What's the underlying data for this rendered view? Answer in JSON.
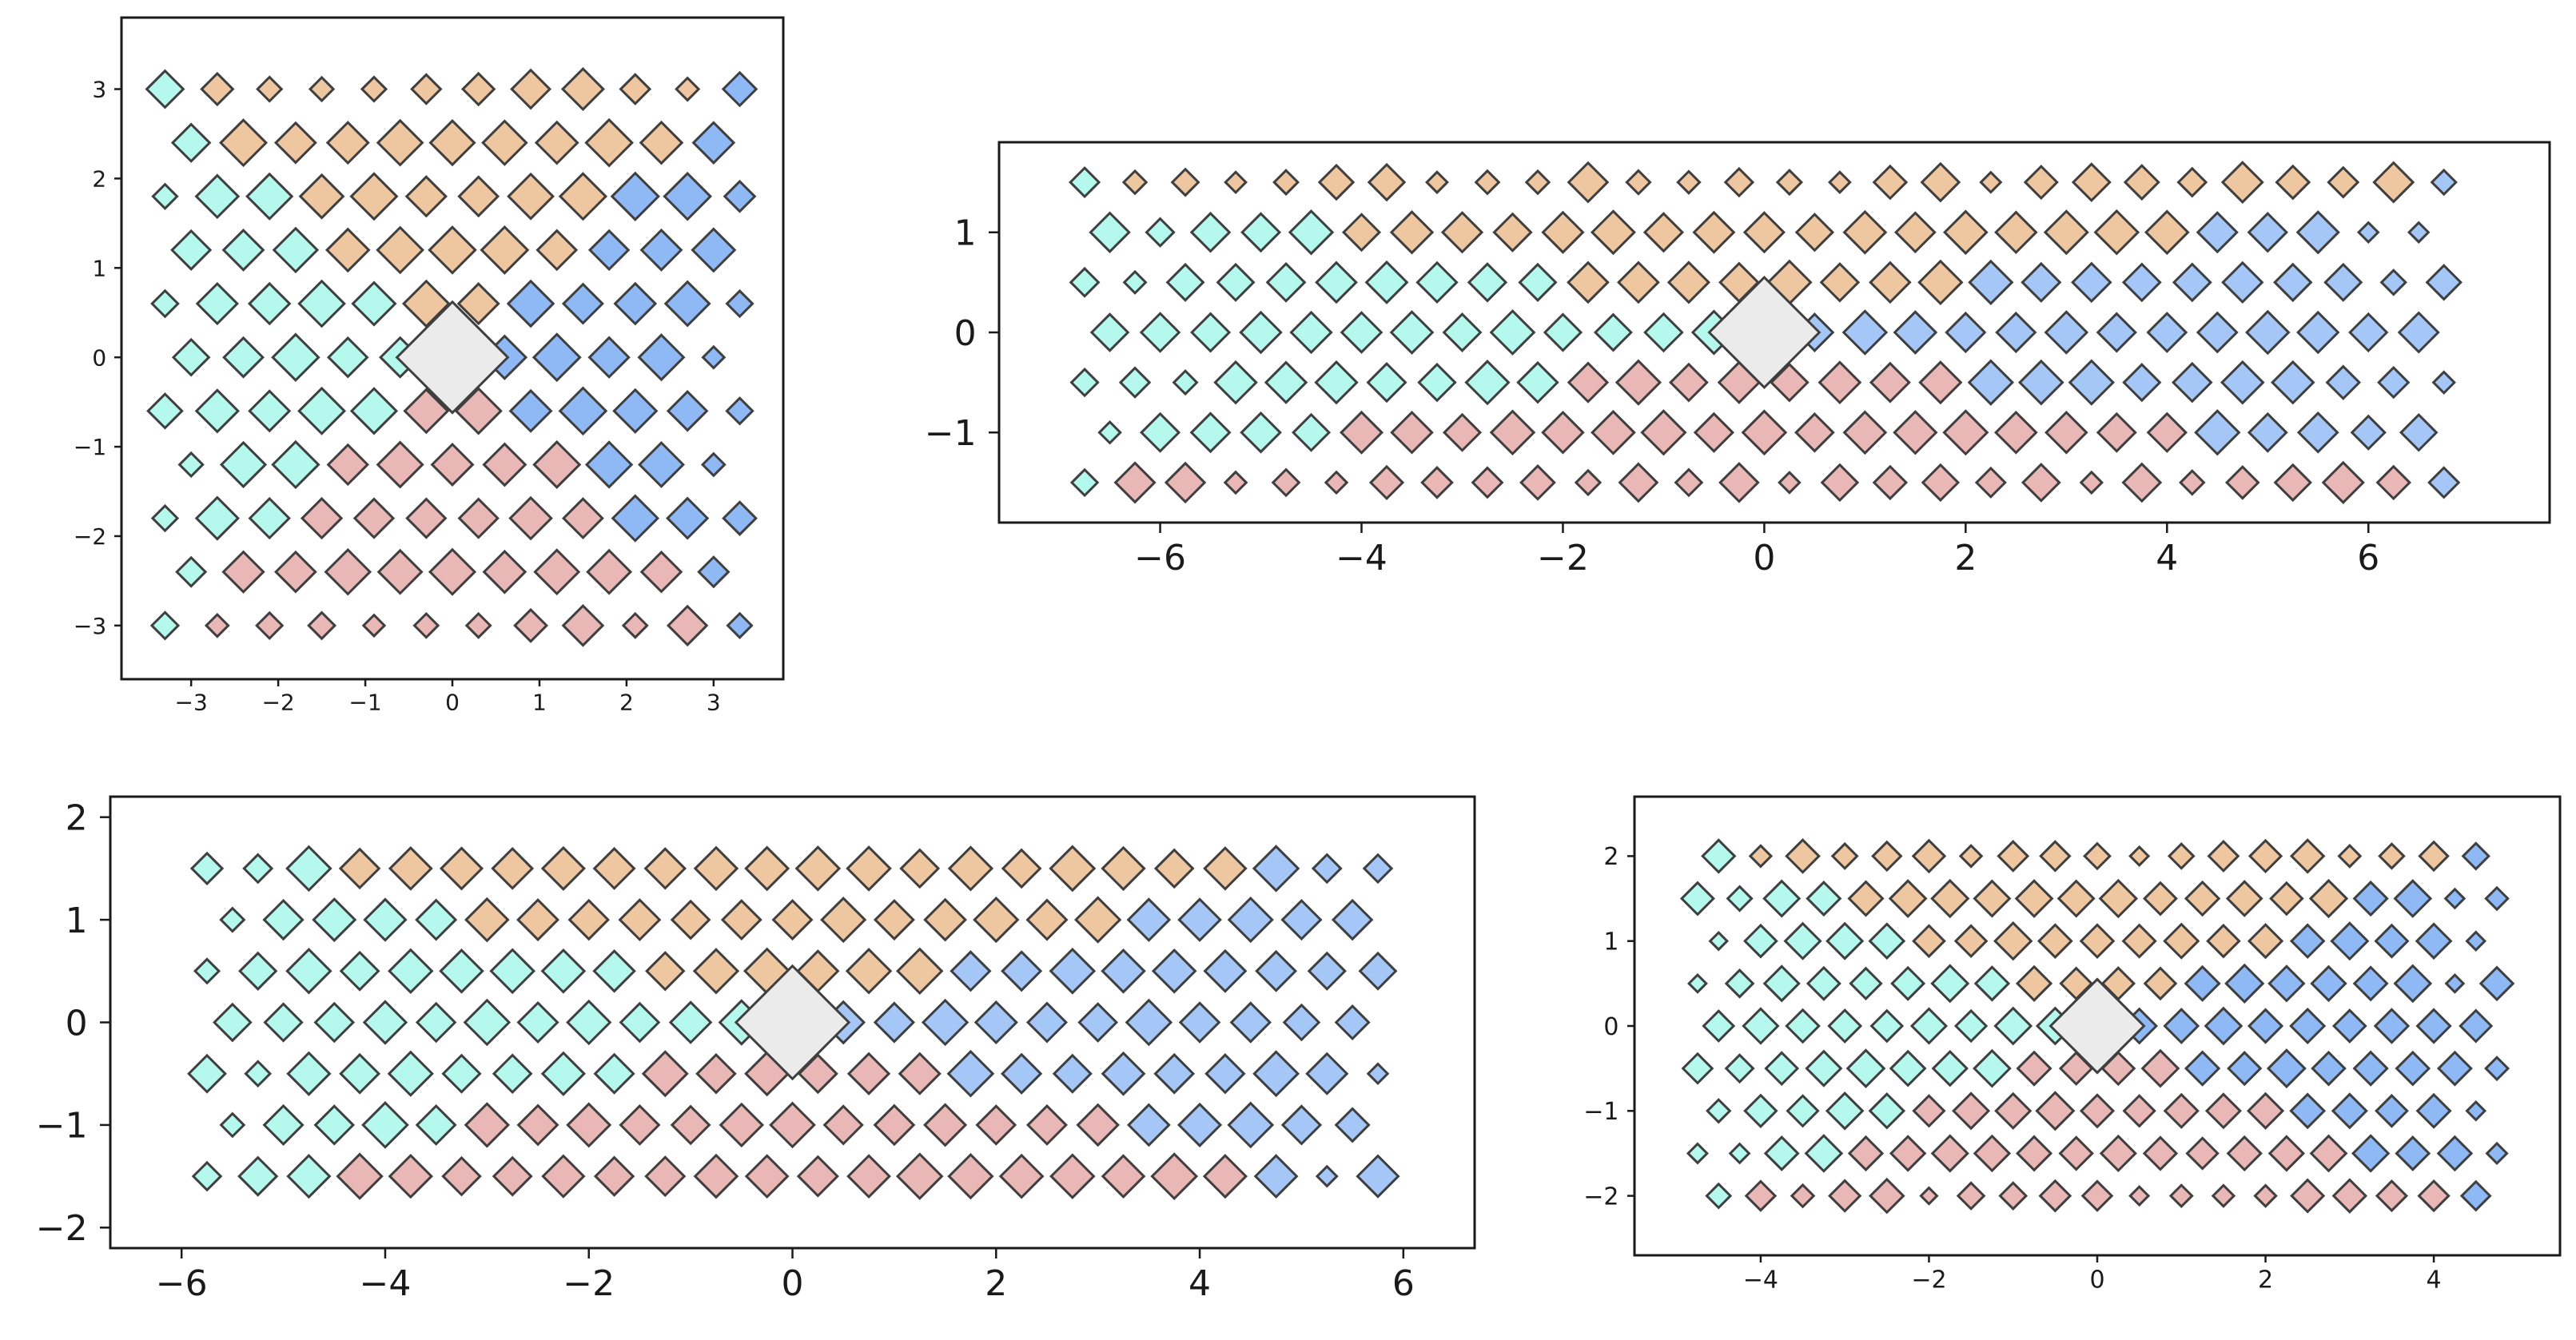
{
  "palette": {
    "upper": "#eec6a0",
    "left": "#b4f8ee",
    "right_a": "#8fb9f5",
    "right_b": "#a5c7f8",
    "lower": "#e9b7b5",
    "center": "#ebebeb",
    "edge": "#3f3f3f"
  },
  "chart_data": [
    {
      "type": "scatter",
      "marker": "diamond",
      "title": "",
      "xlabel": "",
      "ylabel": "",
      "xlim": [
        -3.8,
        3.8
      ],
      "ylim": [
        -3.6,
        3.8
      ],
      "xticks": [
        -3,
        -2,
        -1,
        0,
        1,
        2,
        3
      ],
      "yticks": [
        -3,
        -2,
        -1,
        0,
        1,
        2,
        3
      ],
      "xtick_labels": [
        "−3",
        "−2",
        "−1",
        "0",
        "1",
        "2",
        "3"
      ],
      "ytick_labels": [
        "−3",
        "−2",
        "−1",
        "0",
        "1",
        "2",
        "3"
      ],
      "grid": false,
      "spacing": 0.6,
      "range": 3.3,
      "center_half_size": 0.62,
      "sectors": [
        {
          "name": "",
          "region": "upper",
          "color": "#eec6a0"
        },
        {
          "name": "",
          "region": "left",
          "color": "#b4f8ee"
        },
        {
          "name": "",
          "region": "right",
          "color": "#8fb9f5"
        },
        {
          "name": "",
          "region": "lower",
          "color": "#e9b7b5"
        }
      ]
    },
    {
      "type": "scatter",
      "marker": "diamond",
      "title": "",
      "xlabel": "",
      "ylabel": "",
      "xlim": [
        -7.6,
        7.8
      ],
      "ylim": [
        -1.9,
        1.9
      ],
      "xticks": [
        -6,
        -4,
        -2,
        0,
        2,
        4,
        6
      ],
      "yticks": [
        -1,
        0,
        1
      ],
      "xtick_labels": [
        "−6",
        "−4",
        "−2",
        "0",
        "2",
        "4",
        "6"
      ],
      "ytick_labels": [
        "−1",
        "0",
        "1"
      ],
      "grid": false,
      "spacing": 0.5,
      "range": [
        6.9,
        1.6
      ],
      "center_half_size": 0.55,
      "sectors": [
        {
          "name": "",
          "region": "upper",
          "color": "#eec6a0"
        },
        {
          "name": "",
          "region": "left",
          "color": "#b4f8ee"
        },
        {
          "name": "",
          "region": "right",
          "color": "#a5c7f8"
        },
        {
          "name": "",
          "region": "lower",
          "color": "#e9b7b5"
        }
      ]
    },
    {
      "type": "scatter",
      "marker": "diamond",
      "title": "",
      "xlabel": "",
      "ylabel": "",
      "xlim": [
        -6.7,
        6.7
      ],
      "ylim": [
        -2.2,
        2.2
      ],
      "xticks": [
        -6,
        -4,
        -2,
        0,
        2,
        4,
        6
      ],
      "yticks": [
        -2,
        -1,
        0,
        1,
        2
      ],
      "xtick_labels": [
        "−6",
        "−4",
        "−2",
        "0",
        "2",
        "4",
        "6"
      ],
      "ytick_labels": [
        "−2",
        "−1",
        "0",
        "1",
        "2"
      ],
      "grid": false,
      "spacing": 0.5,
      "range": [
        5.9,
        1.9
      ],
      "center_half_size": 0.55,
      "sectors": [
        {
          "name": "",
          "region": "upper",
          "color": "#eec6a0"
        },
        {
          "name": "",
          "region": "left",
          "color": "#b4f8ee"
        },
        {
          "name": "",
          "region": "right",
          "color": "#a5c7f8"
        },
        {
          "name": "",
          "region": "lower",
          "color": "#e9b7b5"
        }
      ]
    },
    {
      "type": "scatter",
      "marker": "diamond",
      "title": "",
      "xlabel": "",
      "ylabel": "",
      "xlim": [
        -5.5,
        5.5
      ],
      "ylim": [
        -2.7,
        2.7
      ],
      "xticks": [
        -4,
        -2,
        0,
        2,
        4
      ],
      "yticks": [
        -2,
        -1,
        0,
        1,
        2
      ],
      "xtick_labels": [
        "−4",
        "−2",
        "0",
        "2",
        "4"
      ],
      "ytick_labels": [
        "−2",
        "−1",
        "0",
        "1",
        "2"
      ],
      "grid": false,
      "spacing": 0.5,
      "range": [
        4.9,
        2.4
      ],
      "center_half_size": 0.55,
      "sectors": [
        {
          "name": "",
          "region": "upper",
          "color": "#eec6a0"
        },
        {
          "name": "",
          "region": "left",
          "color": "#b4f8ee"
        },
        {
          "name": "",
          "region": "right",
          "color": "#8fb9f5"
        },
        {
          "name": "",
          "region": "lower",
          "color": "#e9b7b5"
        }
      ]
    }
  ]
}
